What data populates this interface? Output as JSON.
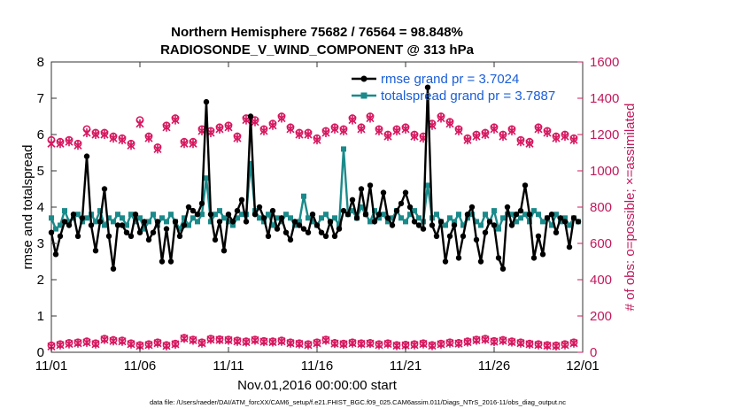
{
  "chart_data": {
    "type": "line",
    "title": "Northern Hemisphere 75682 / 76564 = 98.848%",
    "subtitle": "RADIOSONDE_V_WIND_COMPONENT @ 313 hPa",
    "xlabel": "Nov.01,2016 00:00:00 start",
    "ylabel": "rmse and totalspread",
    "y2label": "# of obs: o=possible; ×=assimilated",
    "footer": "data file: /Users/raeder/DAI/ATM_forcXX/CAM6_setup/f.e21.FHIST_BGC.f09_025.CAM6assim.011/Diags_NTrS_2016-11/obs_diag_output.nc",
    "xlim": [
      0,
      30
    ],
    "ylim": [
      0,
      8
    ],
    "y2lim": [
      0,
      1600
    ],
    "xticks": [
      0,
      5,
      10,
      15,
      20,
      25,
      30
    ],
    "xtick_labels": [
      "11/01",
      "11/06",
      "11/11",
      "11/16",
      "11/21",
      "11/26",
      "12/01"
    ],
    "yticks": [
      0,
      1,
      2,
      3,
      4,
      5,
      6,
      7,
      8
    ],
    "ytick_labels": [
      "0",
      "1",
      "2",
      "3",
      "4",
      "5",
      "6",
      "7",
      "8"
    ],
    "y2ticks": [
      0,
      200,
      400,
      600,
      800,
      1000,
      1200,
      1400,
      1600
    ],
    "y2tick_labels": [
      "0",
      "200",
      "400",
      "600",
      "800",
      "1000",
      "1200",
      "1400",
      "1600"
    ],
    "legend_location": "top-right",
    "colors": {
      "rmse": "#000000",
      "spread": "#1b8a8a",
      "obs": "#d6175f",
      "legend_text": "#1a5ed8"
    },
    "series": [
      {
        "name": "rmse grand pr = 3.7024",
        "axis": "left",
        "x": [
          0.0,
          0.25,
          0.5,
          0.75,
          1.0,
          1.25,
          1.5,
          1.75,
          2.0,
          2.25,
          2.5,
          2.75,
          3.0,
          3.25,
          3.5,
          3.75,
          4.0,
          4.25,
          4.5,
          4.75,
          5.0,
          5.25,
          5.5,
          5.75,
          6.0,
          6.25,
          6.5,
          6.75,
          7.0,
          7.25,
          7.5,
          7.75,
          8.0,
          8.25,
          8.5,
          8.75,
          9.0,
          9.25,
          9.5,
          9.75,
          10.0,
          10.25,
          10.5,
          10.75,
          11.0,
          11.25,
          11.5,
          11.75,
          12.0,
          12.25,
          12.5,
          12.75,
          13.0,
          13.25,
          13.5,
          13.75,
          14.0,
          14.25,
          14.5,
          14.75,
          15.0,
          15.25,
          15.5,
          15.75,
          16.0,
          16.25,
          16.5,
          16.75,
          17.0,
          17.25,
          17.5,
          17.75,
          18.0,
          18.25,
          18.5,
          18.75,
          19.0,
          19.25,
          19.5,
          19.75,
          20.0,
          20.25,
          20.5,
          20.75,
          21.0,
          21.25,
          21.5,
          21.75,
          22.0,
          22.25,
          22.5,
          22.75,
          23.0,
          23.25,
          23.5,
          23.75,
          24.0,
          24.25,
          24.5,
          24.75,
          25.0,
          25.25,
          25.5,
          25.75,
          26.0,
          26.25,
          26.5,
          26.75,
          27.0,
          27.25,
          27.5,
          27.75,
          28.0,
          28.25,
          28.5,
          28.75,
          29.0,
          29.25,
          29.5,
          29.75
        ],
        "values": [
          3.3,
          2.7,
          3.2,
          3.6,
          3.5,
          3.8,
          3.2,
          3.7,
          5.4,
          3.5,
          2.8,
          3.6,
          4.5,
          3.2,
          2.3,
          3.5,
          3.5,
          3.3,
          3.2,
          3.8,
          3.3,
          3.6,
          3.1,
          3.3,
          3.6,
          2.5,
          3.4,
          2.5,
          3.6,
          3.2,
          3.5,
          4.0,
          3.9,
          3.8,
          4.1,
          6.9,
          3.8,
          3.1,
          3.6,
          2.8,
          3.8,
          3.6,
          3.9,
          4.2,
          3.6,
          6.5,
          3.8,
          4.0,
          3.7,
          3.2,
          3.9,
          3.4,
          3.7,
          3.3,
          3.1,
          3.6,
          3.5,
          3.4,
          3.3,
          3.8,
          3.5,
          3.3,
          3.2,
          3.6,
          3.2,
          3.4,
          3.9,
          3.8,
          4.2,
          3.7,
          4.5,
          3.8,
          4.6,
          3.6,
          3.8,
          4.4,
          3.7,
          3.5,
          3.9,
          4.1,
          4.4,
          4.0,
          3.6,
          3.5,
          3.4,
          7.3,
          3.5,
          3.2,
          3.6,
          2.5,
          3.2,
          3.5,
          2.6,
          3.2,
          3.8,
          4.0,
          3.1,
          2.5,
          3.3,
          3.6,
          3.5,
          2.6,
          2.3,
          4.0,
          3.5,
          3.8,
          3.9,
          4.6,
          3.8,
          2.6,
          3.2,
          2.7,
          3.7,
          3.8,
          3.3,
          3.7,
          3.6,
          2.9,
          3.7,
          3.6
        ]
      },
      {
        "name": "totalspread grand pr = 3.7887",
        "axis": "left",
        "x": [
          0.0,
          0.25,
          0.5,
          0.75,
          1.0,
          1.25,
          1.5,
          1.75,
          2.0,
          2.25,
          2.5,
          2.75,
          3.0,
          3.25,
          3.5,
          3.75,
          4.0,
          4.25,
          4.5,
          4.75,
          5.0,
          5.25,
          5.5,
          5.75,
          6.0,
          6.25,
          6.5,
          6.75,
          7.0,
          7.25,
          7.5,
          7.75,
          8.0,
          8.25,
          8.5,
          8.75,
          9.0,
          9.25,
          9.5,
          9.75,
          10.0,
          10.25,
          10.5,
          10.75,
          11.0,
          11.25,
          11.5,
          11.75,
          12.0,
          12.25,
          12.5,
          12.75,
          13.0,
          13.25,
          13.5,
          13.75,
          14.0,
          14.25,
          14.5,
          14.75,
          15.0,
          15.25,
          15.5,
          15.75,
          16.0,
          16.25,
          16.5,
          16.75,
          17.0,
          17.25,
          17.5,
          17.75,
          18.0,
          18.25,
          18.5,
          18.75,
          19.0,
          19.25,
          19.5,
          19.75,
          20.0,
          20.25,
          20.5,
          20.75,
          21.0,
          21.25,
          21.5,
          21.75,
          22.0,
          22.25,
          22.5,
          22.75,
          23.0,
          23.25,
          23.5,
          23.75,
          24.0,
          24.25,
          24.5,
          24.75,
          25.0,
          25.25,
          25.5,
          25.75,
          26.0,
          26.25,
          26.5,
          26.75,
          27.0,
          27.25,
          27.5,
          27.75,
          28.0,
          28.25,
          28.5,
          28.75,
          29.0,
          29.25,
          29.5,
          29.75
        ],
        "values": [
          3.7,
          3.4,
          3.5,
          3.9,
          3.6,
          3.7,
          3.8,
          3.6,
          3.7,
          3.8,
          3.6,
          3.9,
          3.5,
          3.7,
          3.6,
          3.8,
          3.7,
          3.5,
          3.8,
          3.6,
          3.7,
          3.4,
          3.6,
          3.8,
          3.5,
          3.7,
          3.6,
          3.8,
          3.6,
          3.4,
          3.7,
          3.5,
          3.7,
          3.6,
          3.8,
          4.8,
          3.6,
          3.8,
          3.9,
          3.7,
          3.6,
          3.5,
          3.7,
          3.8,
          3.8,
          5.2,
          3.9,
          3.7,
          3.6,
          3.8,
          3.5,
          3.7,
          3.6,
          3.8,
          3.7,
          3.5,
          3.6,
          4.3,
          3.7,
          3.6,
          3.5,
          3.7,
          3.8,
          3.6,
          3.7,
          3.5,
          5.6,
          3.8,
          3.9,
          3.7,
          4.0,
          3.8,
          3.6,
          3.9,
          3.7,
          3.8,
          3.6,
          3.7,
          3.9,
          3.7,
          3.6,
          3.8,
          3.9,
          3.7,
          3.6,
          4.6,
          3.7,
          3.8,
          3.6,
          3.5,
          3.7,
          3.6,
          3.8,
          3.5,
          3.7,
          3.8,
          3.6,
          3.5,
          3.8,
          3.6,
          3.9,
          3.4,
          3.7,
          3.8,
          3.8,
          3.6,
          3.7,
          3.8,
          3.6,
          3.9,
          3.8,
          3.6,
          3.7,
          3.5,
          3.8,
          3.6,
          3.7,
          3.5,
          3.7,
          3.6
        ]
      },
      {
        "name": "obs possible",
        "axis": "right",
        "x": [
          0.0,
          0.5,
          1.0,
          1.5,
          2.0,
          2.5,
          3.0,
          3.5,
          4.0,
          4.5,
          5.0,
          5.5,
          6.0,
          6.5,
          7.0,
          7.5,
          8.0,
          8.5,
          9.0,
          9.5,
          10.0,
          10.5,
          11.0,
          11.5,
          12.0,
          12.5,
          13.0,
          13.5,
          14.0,
          14.5,
          15.0,
          15.5,
          16.0,
          16.5,
          17.0,
          17.5,
          18.0,
          18.5,
          19.0,
          19.5,
          20.0,
          20.5,
          21.0,
          21.5,
          22.0,
          22.5,
          23.0,
          23.5,
          24.0,
          24.5,
          25.0,
          25.5,
          26.0,
          26.5,
          27.0,
          27.5,
          28.0,
          28.5,
          29.0,
          29.5
        ],
        "values": [
          1170,
          1160,
          1170,
          1150,
          1230,
          1210,
          1210,
          1190,
          1180,
          1150,
          1280,
          1190,
          1130,
          1250,
          1290,
          1160,
          1160,
          1230,
          1220,
          1240,
          1250,
          1190,
          1290,
          1280,
          1230,
          1260,
          1300,
          1240,
          1210,
          1210,
          1180,
          1220,
          1240,
          1230,
          1290,
          1240,
          1300,
          1230,
          1200,
          1230,
          1240,
          1200,
          1190,
          1260,
          1300,
          1270,
          1230,
          1180,
          1200,
          1210,
          1240,
          1200,
          1230,
          1170,
          1160,
          1240,
          1220,
          1190,
          1200,
          1180
        ]
      },
      {
        "name": "obs assimilated",
        "axis": "right",
        "x": [
          0.0,
          0.5,
          1.0,
          1.5,
          2.0,
          2.5,
          3.0,
          3.5,
          4.0,
          4.5,
          5.0,
          5.5,
          6.0,
          6.5,
          7.0,
          7.5,
          8.0,
          8.5,
          9.0,
          9.5,
          10.0,
          10.5,
          11.0,
          11.5,
          12.0,
          12.5,
          13.0,
          13.5,
          14.0,
          14.5,
          15.0,
          15.5,
          16.0,
          16.5,
          17.0,
          17.5,
          18.0,
          18.5,
          19.0,
          19.5,
          20.0,
          20.5,
          21.0,
          21.5,
          22.0,
          22.5,
          23.0,
          23.5,
          24.0,
          24.5,
          25.0,
          25.5,
          26.0,
          26.5,
          27.0,
          27.5,
          28.0,
          28.5,
          29.0,
          29.5
        ],
        "values": [
          1150,
          1150,
          1160,
          1140,
          1210,
          1200,
          1200,
          1180,
          1170,
          1140,
          1260,
          1180,
          1120,
          1240,
          1280,
          1150,
          1150,
          1220,
          1210,
          1230,
          1240,
          1180,
          1280,
          1270,
          1220,
          1250,
          1290,
          1230,
          1200,
          1200,
          1170,
          1210,
          1230,
          1220,
          1280,
          1230,
          1290,
          1220,
          1190,
          1220,
          1230,
          1190,
          1180,
          1250,
          1290,
          1260,
          1220,
          1170,
          1190,
          1200,
          1230,
          1190,
          1220,
          1160,
          1150,
          1230,
          1210,
          1180,
          1190,
          1170
        ]
      },
      {
        "name": "obs possible (lower)",
        "axis": "right",
        "x": [
          0.0,
          0.5,
          1.0,
          1.5,
          2.0,
          2.5,
          3.0,
          3.5,
          4.0,
          4.5,
          5.0,
          5.5,
          6.0,
          6.5,
          7.0,
          7.5,
          8.0,
          8.5,
          9.0,
          9.5,
          10.0,
          10.5,
          11.0,
          11.5,
          12.0,
          12.5,
          13.0,
          13.5,
          14.0,
          14.5,
          15.0,
          15.5,
          16.0,
          16.5,
          17.0,
          17.5,
          18.0,
          18.5,
          19.0,
          19.5,
          20.0,
          20.5,
          21.0,
          21.5,
          22.0,
          22.5,
          23.0,
          23.5,
          24.0,
          24.5,
          25.0,
          25.5,
          26.0,
          26.5,
          27.0,
          27.5,
          28.0,
          28.5,
          29.0,
          29.5
        ],
        "values": [
          38,
          45,
          52,
          55,
          60,
          50,
          75,
          68,
          65,
          50,
          40,
          45,
          55,
          40,
          48,
          80,
          70,
          55,
          75,
          72,
          70,
          65,
          60,
          70,
          62,
          60,
          65,
          55,
          50,
          45,
          55,
          70,
          52,
          48,
          55,
          50,
          52,
          45,
          50,
          40,
          42,
          45,
          50,
          40,
          48,
          55,
          52,
          60,
          70,
          75,
          62,
          68,
          60,
          55,
          48,
          45,
          40,
          38,
          45,
          55
        ]
      },
      {
        "name": "obs assimilated (lower)",
        "axis": "right",
        "x": [
          0.0,
          0.5,
          1.0,
          1.5,
          2.0,
          2.5,
          3.0,
          3.5,
          4.0,
          4.5,
          5.0,
          5.5,
          6.0,
          6.5,
          7.0,
          7.5,
          8.0,
          8.5,
          9.0,
          9.5,
          10.0,
          10.5,
          11.0,
          11.5,
          12.0,
          12.5,
          13.0,
          13.5,
          14.0,
          14.5,
          15.0,
          15.5,
          16.0,
          16.5,
          17.0,
          17.5,
          18.0,
          18.5,
          19.0,
          19.5,
          20.0,
          20.5,
          21.0,
          21.5,
          22.0,
          22.5,
          23.0,
          23.5,
          24.0,
          24.5,
          25.0,
          25.5,
          26.0,
          26.5,
          27.0,
          27.5,
          28.0,
          28.5,
          29.0,
          29.5
        ],
        "values": [
          32,
          40,
          46,
          50,
          54,
          45,
          70,
          62,
          60,
          45,
          35,
          40,
          50,
          35,
          44,
          76,
          66,
          50,
          70,
          68,
          66,
          60,
          56,
          66,
          58,
          56,
          60,
          50,
          46,
          40,
          50,
          66,
          48,
          44,
          50,
          46,
          48,
          40,
          46,
          36,
          38,
          40,
          46,
          36,
          44,
          50,
          48,
          56,
          66,
          70,
          58,
          64,
          56,
          50,
          44,
          40,
          36,
          34,
          40,
          50
        ]
      }
    ]
  }
}
